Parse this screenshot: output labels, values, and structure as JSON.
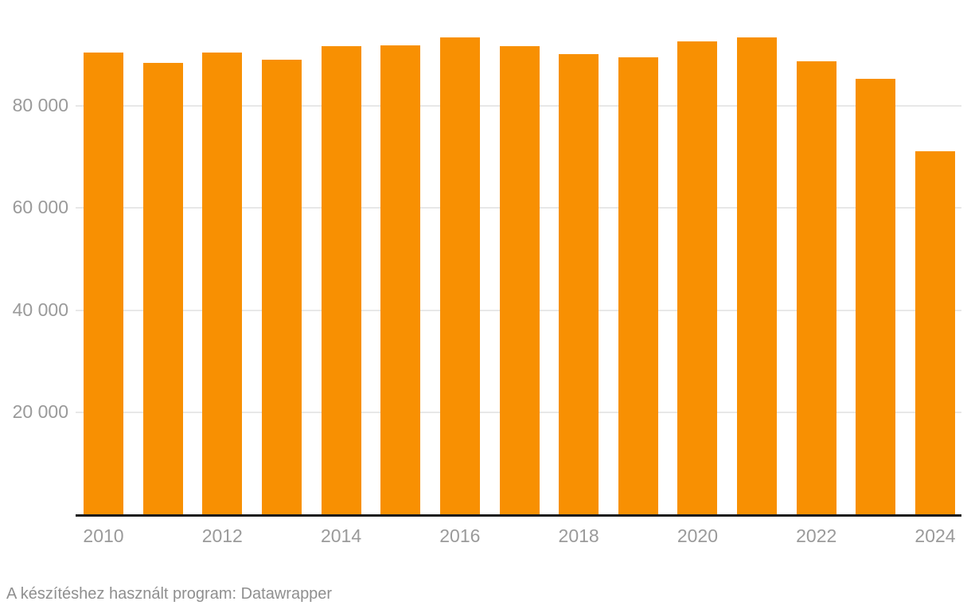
{
  "chart_data": {
    "type": "bar",
    "categories": [
      "2010",
      "2011",
      "2012",
      "2013",
      "2014",
      "2015",
      "2016",
      "2017",
      "2018",
      "2019",
      "2020",
      "2021",
      "2022",
      "2023",
      "2024"
    ],
    "values": [
      90500,
      88400,
      90500,
      89000,
      91700,
      91900,
      93400,
      91800,
      90100,
      89600,
      92600,
      93400,
      88800,
      85400,
      71200
    ],
    "title": "",
    "xlabel": "",
    "ylabel": "",
    "x_tick_labels": [
      "2010",
      "2012",
      "2014",
      "2016",
      "2018",
      "2020",
      "2022",
      "2024"
    ],
    "y_tick_labels": [
      "20 000",
      "40 000",
      "60 000",
      "80 000"
    ],
    "y_tick_values": [
      20000,
      40000,
      60000,
      80000
    ],
    "ylim": [
      0,
      100800
    ],
    "grid": "horizontal",
    "legend": "none",
    "bar_color": "#F89002"
  },
  "footer": {
    "text": "A készítéshez használt program: Datawrapper"
  },
  "colors": {
    "bar": "#F89002",
    "grid_line": "#e8e8e8",
    "axis_line": "#1c1c1c",
    "tick_label": "#9a9a9a",
    "footer_text": "#8f8f8f",
    "background": "#ffffff"
  }
}
